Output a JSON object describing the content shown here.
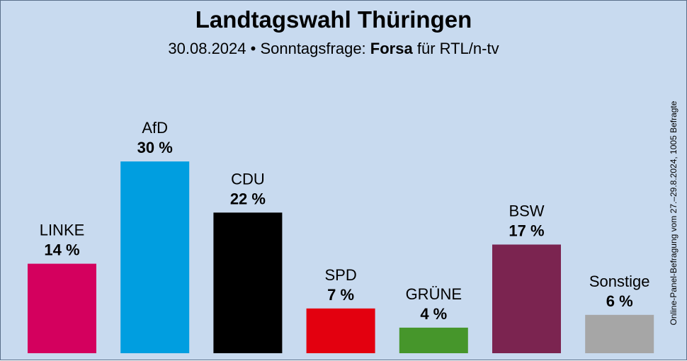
{
  "chart_data": {
    "type": "bar",
    "title": "Landtagswahl Thüringen",
    "subtitle_date": "30.08.2024 • Sonntagsfrage:",
    "subtitle_pollster": "Forsa",
    "subtitle_client": "für RTL/n-tv",
    "side_note": "Online-Panel-Befragung vom 27.–29.8.2024, 1005 Befragte",
    "categories": [
      "LINKE",
      "AfD",
      "CDU",
      "SPD",
      "GRÜNE",
      "BSW",
      "Sonstige"
    ],
    "values": [
      14,
      30,
      22,
      7,
      4,
      17,
      6
    ],
    "value_labels": [
      "14 %",
      "30 %",
      "22 %",
      "7 %",
      "4 %",
      "17 %",
      "6 %"
    ],
    "colors": [
      "#d4005e",
      "#009ee0",
      "#000000",
      "#e3000f",
      "#46962b",
      "#7b2450",
      "#a6a6a6"
    ],
    "ylim": [
      0,
      30
    ],
    "unit": "%"
  }
}
